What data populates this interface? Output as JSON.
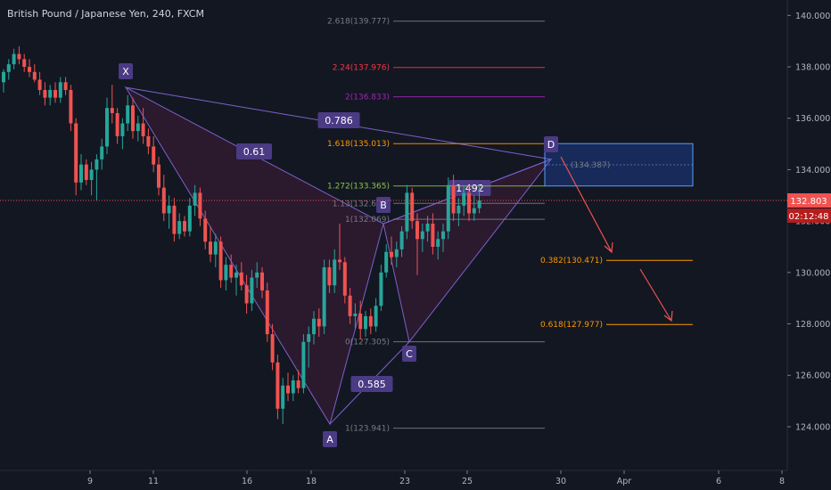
{
  "header": {
    "title": "British Pound / Japanese Yen, 240, FXCM"
  },
  "price_tag": {
    "price": "132.803",
    "countdown": "02:12:48",
    "color": "#ef5350"
  },
  "colors": {
    "background": "#131722",
    "bull": "#26a69a",
    "bear": "#ef5350",
    "pattern_fill": "rgba(156,39,105,0.18)",
    "pattern_line": "#7b61c9",
    "arrow": "#ef5350",
    "target_box": "rgba(41,98,255,0.25)"
  },
  "chart_data": {
    "type": "candlestick",
    "symbol": "British Pound / Japanese Yen",
    "interval": "240",
    "source": "FXCM",
    "last_price": 132.803,
    "ylim": [
      122.3,
      140.6
    ],
    "y_ticks": [
      124,
      126,
      128,
      130,
      132,
      134,
      136,
      138,
      140
    ],
    "y_tick_labels": [
      "124.000",
      "126.000",
      "128.000",
      "130.000",
      "132.000",
      "134.000",
      "136.000",
      "138.000",
      "140.000"
    ],
    "x_ticks": [
      "9",
      "11",
      "16",
      "18",
      "23",
      "25",
      "30",
      "Apr",
      "6",
      "8"
    ],
    "pattern": {
      "name": "harmonic",
      "points": [
        {
          "label": "X",
          "price": 137.2
        },
        {
          "label": "A",
          "price": 124.1
        },
        {
          "label": "B",
          "price": 131.9
        },
        {
          "label": "C",
          "price": 127.3
        },
        {
          "label": "D",
          "price": 134.4
        }
      ],
      "ratios": [
        {
          "label": "0.61",
          "segment": "XA-AB"
        },
        {
          "label": "0.786",
          "segment": "XD"
        },
        {
          "label": "0.585",
          "segment": "AB-BC"
        },
        {
          "label": "1.492",
          "segment": "BC-CD"
        }
      ]
    },
    "fib_levels": [
      {
        "label": "2.618(139.777)",
        "price": 139.777,
        "color": "#787b86"
      },
      {
        "label": "2.24(137.976)",
        "price": 137.976,
        "color": "#f23645"
      },
      {
        "label": "2(136.833)",
        "price": 136.833,
        "color": "#9c27b0"
      },
      {
        "label": "1.618(135.013)",
        "price": 135.013,
        "color": "#ff9800"
      },
      {
        "label": "1.272(133.365)",
        "price": 133.365,
        "color": "#8bc34a"
      },
      {
        "label": "1.13(132.689)",
        "price": 132.689,
        "color": "#787b86"
      },
      {
        "label": "1(132.069)",
        "price": 132.069,
        "color": "#787b86"
      },
      {
        "label": "0(127.305)",
        "price": 127.305,
        "color": "#787b86"
      },
      {
        "label": "1(123.941)",
        "price": 123.941,
        "color": "#787b86"
      }
    ],
    "targets": [
      {
        "label": "0.382(130.471)",
        "price": 130.471,
        "color": "#ff9800"
      },
      {
        "label": "0.618(127.977)",
        "price": 127.977,
        "color": "#ff9800"
      }
    ],
    "target_zone": {
      "top": 135.013,
      "bottom": 133.365,
      "mid_label": "(134.387)"
    },
    "candles": [
      {
        "o": 137.4,
        "h": 137.9,
        "l": 137.0,
        "c": 137.8
      },
      {
        "o": 137.8,
        "h": 138.3,
        "l": 137.5,
        "c": 138.1
      },
      {
        "o": 138.1,
        "h": 138.7,
        "l": 137.9,
        "c": 138.5
      },
      {
        "o": 138.5,
        "h": 138.8,
        "l": 138.1,
        "c": 138.3
      },
      {
        "o": 138.3,
        "h": 138.5,
        "l": 137.8,
        "c": 138.0
      },
      {
        "o": 138.0,
        "h": 138.3,
        "l": 137.6,
        "c": 137.8
      },
      {
        "o": 137.8,
        "h": 138.1,
        "l": 137.4,
        "c": 137.5
      },
      {
        "o": 137.5,
        "h": 137.8,
        "l": 136.9,
        "c": 137.1
      },
      {
        "o": 137.1,
        "h": 137.4,
        "l": 136.5,
        "c": 136.8
      },
      {
        "o": 136.8,
        "h": 137.3,
        "l": 136.5,
        "c": 137.1
      },
      {
        "o": 137.1,
        "h": 137.4,
        "l": 136.6,
        "c": 136.8
      },
      {
        "o": 136.8,
        "h": 137.6,
        "l": 136.6,
        "c": 137.4
      },
      {
        "o": 137.4,
        "h": 137.6,
        "l": 136.9,
        "c": 137.1
      },
      {
        "o": 137.1,
        "h": 137.3,
        "l": 135.5,
        "c": 135.8
      },
      {
        "o": 135.8,
        "h": 136.0,
        "l": 133.0,
        "c": 133.5
      },
      {
        "o": 133.5,
        "h": 134.6,
        "l": 133.2,
        "c": 134.2
      },
      {
        "o": 134.2,
        "h": 134.4,
        "l": 133.4,
        "c": 133.6
      },
      {
        "o": 133.6,
        "h": 134.3,
        "l": 133.0,
        "c": 134.0
      },
      {
        "o": 134.0,
        "h": 134.6,
        "l": 132.8,
        "c": 134.4
      },
      {
        "o": 134.4,
        "h": 135.2,
        "l": 134.0,
        "c": 134.9
      },
      {
        "o": 134.9,
        "h": 136.8,
        "l": 134.6,
        "c": 136.4
      },
      {
        "o": 136.4,
        "h": 137.3,
        "l": 135.8,
        "c": 136.2
      },
      {
        "o": 136.2,
        "h": 136.4,
        "l": 135.0,
        "c": 135.3
      },
      {
        "o": 135.3,
        "h": 136.0,
        "l": 134.8,
        "c": 135.8
      },
      {
        "o": 135.8,
        "h": 136.9,
        "l": 135.5,
        "c": 136.5
      },
      {
        "o": 136.5,
        "h": 136.8,
        "l": 135.2,
        "c": 135.5
      },
      {
        "o": 135.5,
        "h": 136.1,
        "l": 135.1,
        "c": 135.8
      },
      {
        "o": 135.8,
        "h": 136.4,
        "l": 135.0,
        "c": 135.3
      },
      {
        "o": 135.3,
        "h": 135.6,
        "l": 134.6,
        "c": 134.9
      },
      {
        "o": 134.9,
        "h": 135.3,
        "l": 133.9,
        "c": 134.2
      },
      {
        "o": 134.2,
        "h": 134.5,
        "l": 133.0,
        "c": 133.3
      },
      {
        "o": 133.3,
        "h": 133.8,
        "l": 132.0,
        "c": 132.3
      },
      {
        "o": 132.3,
        "h": 133.0,
        "l": 131.7,
        "c": 132.6
      },
      {
        "o": 132.6,
        "h": 132.9,
        "l": 131.2,
        "c": 131.5
      },
      {
        "o": 131.5,
        "h": 132.3,
        "l": 131.3,
        "c": 132.0
      },
      {
        "o": 132.0,
        "h": 132.2,
        "l": 131.4,
        "c": 131.6
      },
      {
        "o": 131.6,
        "h": 132.9,
        "l": 131.4,
        "c": 132.6
      },
      {
        "o": 132.6,
        "h": 133.4,
        "l": 132.2,
        "c": 133.1
      },
      {
        "o": 133.1,
        "h": 133.3,
        "l": 131.8,
        "c": 132.1
      },
      {
        "o": 132.1,
        "h": 132.4,
        "l": 130.9,
        "c": 131.2
      },
      {
        "o": 131.2,
        "h": 131.8,
        "l": 130.4,
        "c": 130.7
      },
      {
        "o": 130.7,
        "h": 131.5,
        "l": 130.2,
        "c": 131.2
      },
      {
        "o": 131.2,
        "h": 131.4,
        "l": 129.4,
        "c": 129.7
      },
      {
        "o": 129.7,
        "h": 130.6,
        "l": 129.3,
        "c": 130.3
      },
      {
        "o": 130.3,
        "h": 130.7,
        "l": 129.6,
        "c": 129.8
      },
      {
        "o": 129.8,
        "h": 130.3,
        "l": 129.1,
        "c": 130.0
      },
      {
        "o": 130.0,
        "h": 130.4,
        "l": 129.3,
        "c": 129.5
      },
      {
        "o": 129.5,
        "h": 129.9,
        "l": 128.4,
        "c": 128.8
      },
      {
        "o": 128.8,
        "h": 130.1,
        "l": 128.5,
        "c": 129.8
      },
      {
        "o": 129.8,
        "h": 130.4,
        "l": 129.4,
        "c": 130.0
      },
      {
        "o": 130.0,
        "h": 130.2,
        "l": 129.0,
        "c": 129.3
      },
      {
        "o": 129.3,
        "h": 129.6,
        "l": 127.3,
        "c": 127.6
      },
      {
        "o": 127.6,
        "h": 128.0,
        "l": 126.2,
        "c": 126.5
      },
      {
        "o": 126.5,
        "h": 126.8,
        "l": 124.3,
        "c": 124.7
      },
      {
        "o": 124.7,
        "h": 125.9,
        "l": 124.1,
        "c": 125.6
      },
      {
        "o": 125.6,
        "h": 126.1,
        "l": 125.0,
        "c": 125.3
      },
      {
        "o": 125.3,
        "h": 126.0,
        "l": 125.0,
        "c": 125.8
      },
      {
        "o": 125.8,
        "h": 126.2,
        "l": 125.3,
        "c": 125.5
      },
      {
        "o": 125.5,
        "h": 127.6,
        "l": 125.3,
        "c": 127.3
      },
      {
        "o": 127.3,
        "h": 127.9,
        "l": 126.3,
        "c": 127.6
      },
      {
        "o": 127.6,
        "h": 128.5,
        "l": 127.2,
        "c": 128.2
      },
      {
        "o": 128.2,
        "h": 128.6,
        "l": 127.5,
        "c": 127.9
      },
      {
        "o": 127.9,
        "h": 130.5,
        "l": 127.6,
        "c": 130.2
      },
      {
        "o": 130.2,
        "h": 130.5,
        "l": 129.2,
        "c": 129.5
      },
      {
        "o": 129.5,
        "h": 130.9,
        "l": 129.2,
        "c": 130.5
      },
      {
        "o": 130.5,
        "h": 131.9,
        "l": 130.1,
        "c": 130.4
      },
      {
        "o": 130.4,
        "h": 130.6,
        "l": 128.8,
        "c": 129.1
      },
      {
        "o": 129.1,
        "h": 129.4,
        "l": 128.0,
        "c": 128.3
      },
      {
        "o": 128.3,
        "h": 128.8,
        "l": 127.8,
        "c": 128.4
      },
      {
        "o": 128.4,
        "h": 128.9,
        "l": 127.4,
        "c": 127.8
      },
      {
        "o": 127.8,
        "h": 128.5,
        "l": 127.5,
        "c": 128.3
      },
      {
        "o": 128.3,
        "h": 128.6,
        "l": 127.6,
        "c": 127.9
      },
      {
        "o": 127.9,
        "h": 129.0,
        "l": 127.7,
        "c": 128.7
      },
      {
        "o": 128.7,
        "h": 130.3,
        "l": 128.5,
        "c": 130.0
      },
      {
        "o": 130.0,
        "h": 131.1,
        "l": 129.8,
        "c": 130.8
      },
      {
        "o": 130.8,
        "h": 131.4,
        "l": 130.3,
        "c": 130.6
      },
      {
        "o": 130.6,
        "h": 131.2,
        "l": 130.2,
        "c": 130.9
      },
      {
        "o": 130.9,
        "h": 131.8,
        "l": 130.6,
        "c": 131.6
      },
      {
        "o": 131.6,
        "h": 133.4,
        "l": 131.3,
        "c": 133.1
      },
      {
        "o": 133.1,
        "h": 133.3,
        "l": 131.7,
        "c": 132.0
      },
      {
        "o": 132.0,
        "h": 132.3,
        "l": 129.9,
        "c": 131.3
      },
      {
        "o": 131.3,
        "h": 131.9,
        "l": 130.8,
        "c": 131.6
      },
      {
        "o": 131.6,
        "h": 132.2,
        "l": 131.2,
        "c": 131.9
      },
      {
        "o": 131.9,
        "h": 132.3,
        "l": 130.7,
        "c": 131.0
      },
      {
        "o": 131.0,
        "h": 131.6,
        "l": 130.5,
        "c": 131.3
      },
      {
        "o": 131.3,
        "h": 131.9,
        "l": 130.8,
        "c": 131.6
      },
      {
        "o": 131.6,
        "h": 133.7,
        "l": 131.3,
        "c": 133.4
      },
      {
        "o": 133.4,
        "h": 133.8,
        "l": 132.0,
        "c": 132.3
      },
      {
        "o": 132.3,
        "h": 132.9,
        "l": 131.8,
        "c": 132.6
      },
      {
        "o": 132.6,
        "h": 133.4,
        "l": 132.2,
        "c": 133.1
      },
      {
        "o": 133.1,
        "h": 133.4,
        "l": 132.0,
        "c": 132.3
      },
      {
        "o": 132.3,
        "h": 133.0,
        "l": 132.0,
        "c": 132.5
      },
      {
        "o": 132.5,
        "h": 133.4,
        "l": 132.3,
        "c": 132.8
      }
    ]
  }
}
